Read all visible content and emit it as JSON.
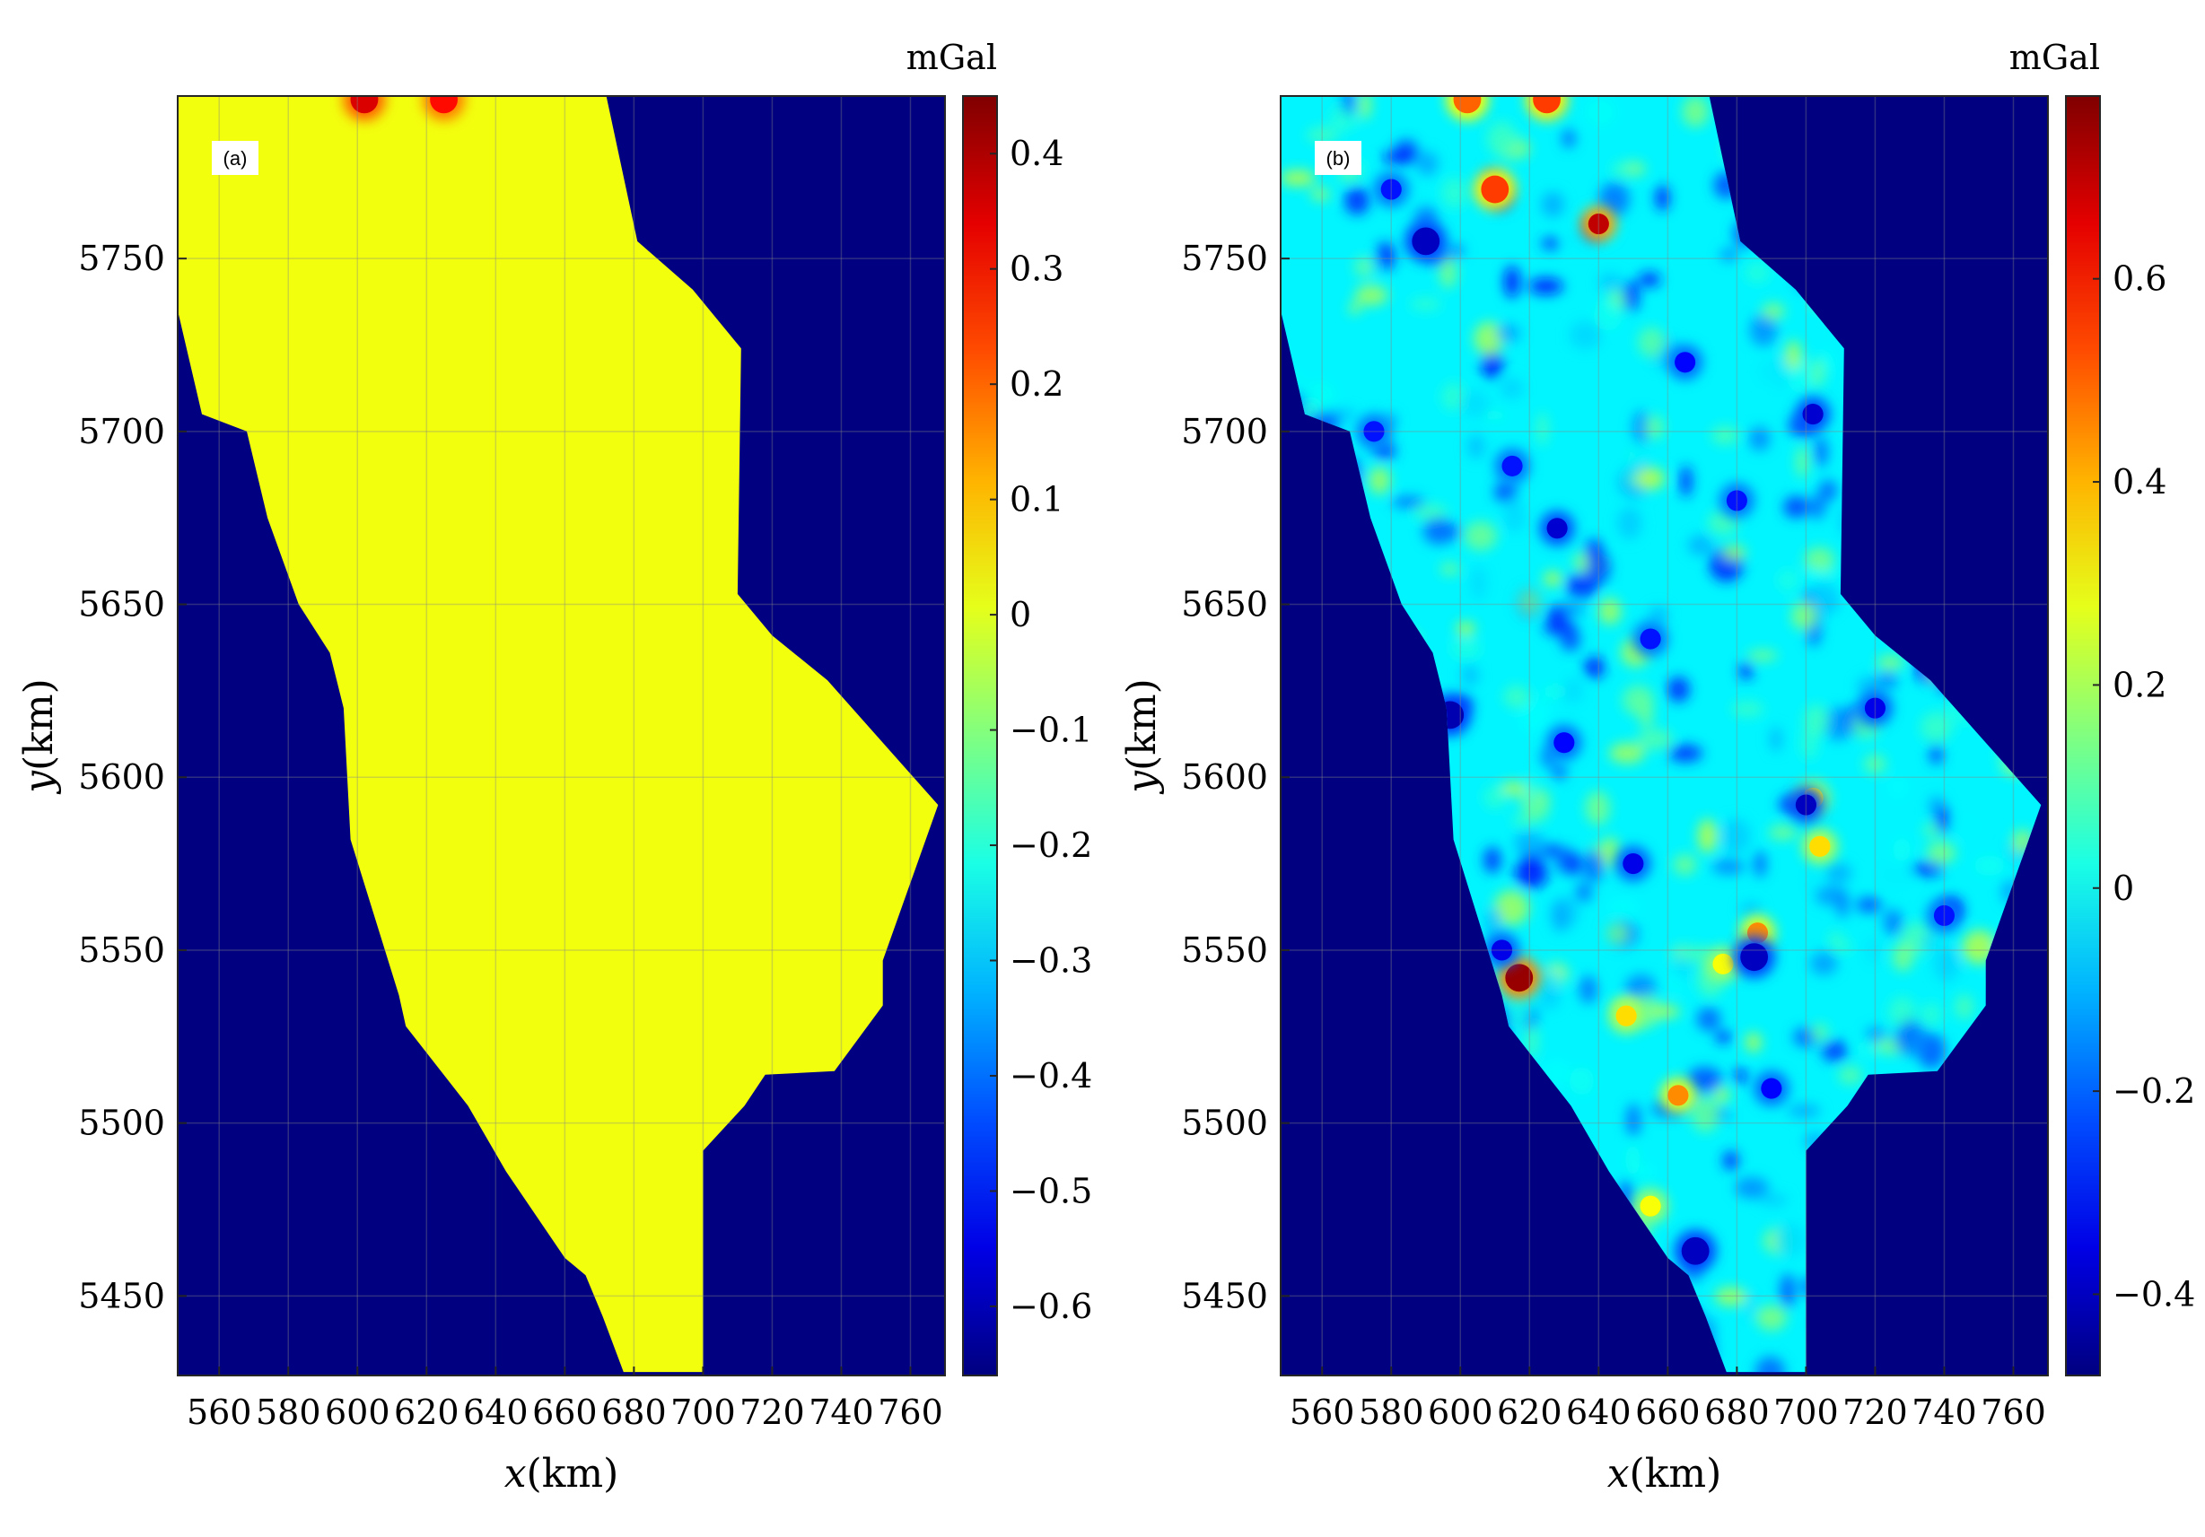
{
  "figure": {
    "background": "#ffffff"
  },
  "chart_data": [
    {
      "type": "heatmap",
      "panel_label": "(a)",
      "xlabel": "x(km)",
      "ylabel": "y(km)",
      "xlim": [
        548,
        770
      ],
      "ylim": [
        5427,
        5797
      ],
      "xticks": [
        560,
        580,
        600,
        620,
        640,
        660,
        680,
        700,
        720,
        740,
        760
      ],
      "yticks": [
        5450,
        5500,
        5550,
        5600,
        5650,
        5700,
        5750
      ],
      "grid": true,
      "colorbar": {
        "unit": "mGal",
        "range": [
          -0.66,
          0.45
        ],
        "ticks": [
          0.4,
          0.3,
          0.2,
          0.1,
          0,
          -0.1,
          -0.2,
          -0.3,
          -0.4,
          -0.5,
          -0.6
        ],
        "colormap": "jet"
      },
      "outside_value": -0.66,
      "inside_value_approx": 0.02,
      "inside_variation": "near-uniform",
      "survey_outline": [
        [
          548,
          5797
        ],
        [
          672,
          5797
        ],
        [
          681,
          5755
        ],
        [
          697,
          5741
        ],
        [
          711,
          5724
        ],
        [
          710,
          5653
        ],
        [
          720,
          5641
        ],
        [
          736,
          5628
        ],
        [
          768,
          5592
        ],
        [
          752,
          5547
        ],
        [
          752,
          5534
        ],
        [
          738,
          5515
        ],
        [
          718,
          5514
        ],
        [
          712,
          5505
        ],
        [
          700,
          5492
        ],
        [
          700,
          5428
        ],
        [
          677,
          5428
        ],
        [
          671,
          5444
        ],
        [
          666,
          5456
        ],
        [
          660,
          5461
        ],
        [
          643,
          5486
        ],
        [
          632,
          5505
        ],
        [
          614,
          5528
        ],
        [
          612,
          5537
        ],
        [
          598,
          5582
        ],
        [
          596,
          5620
        ],
        [
          592,
          5636
        ],
        [
          583,
          5650
        ],
        [
          574,
          5675
        ],
        [
          568,
          5700
        ],
        [
          555,
          5705
        ],
        [
          548,
          5735
        ]
      ],
      "anomalies": [
        {
          "x": 602,
          "y": 5796,
          "radius_km": 4,
          "value": 0.35
        },
        {
          "x": 625,
          "y": 5796,
          "radius_km": 4,
          "value": 0.3
        }
      ]
    },
    {
      "type": "heatmap",
      "panel_label": "(b)",
      "xlabel": "x(km)",
      "ylabel": "y(km)",
      "xlim": [
        548,
        770
      ],
      "ylim": [
        5427,
        5797
      ],
      "xticks": [
        560,
        580,
        600,
        620,
        640,
        660,
        680,
        700,
        720,
        740,
        760
      ],
      "yticks": [
        5450,
        5500,
        5550,
        5600,
        5650,
        5700,
        5750
      ],
      "grid": true,
      "colorbar": {
        "unit": "mGal",
        "range": [
          -0.48,
          0.78
        ],
        "ticks": [
          0.6,
          0.4,
          0.2,
          0,
          -0.2,
          -0.4
        ],
        "colormap": "jet"
      },
      "outside_value": -0.48,
      "inside_value_approx": -0.02,
      "inside_variation": "speckled, roughly -0.35 to 0.3",
      "survey_outline": [
        [
          548,
          5797
        ],
        [
          672,
          5797
        ],
        [
          681,
          5755
        ],
        [
          697,
          5741
        ],
        [
          711,
          5724
        ],
        [
          710,
          5653
        ],
        [
          720,
          5641
        ],
        [
          736,
          5628
        ],
        [
          768,
          5592
        ],
        [
          752,
          5547
        ],
        [
          752,
          5534
        ],
        [
          738,
          5515
        ],
        [
          718,
          5514
        ],
        [
          712,
          5505
        ],
        [
          700,
          5492
        ],
        [
          700,
          5428
        ],
        [
          677,
          5428
        ],
        [
          671,
          5444
        ],
        [
          666,
          5456
        ],
        [
          660,
          5461
        ],
        [
          643,
          5486
        ],
        [
          632,
          5505
        ],
        [
          614,
          5528
        ],
        [
          612,
          5537
        ],
        [
          598,
          5582
        ],
        [
          596,
          5620
        ],
        [
          592,
          5636
        ],
        [
          583,
          5650
        ],
        [
          574,
          5675
        ],
        [
          568,
          5700
        ],
        [
          555,
          5705
        ],
        [
          548,
          5735
        ]
      ],
      "anomalies": [
        {
          "x": 617,
          "y": 5542,
          "radius_km": 4,
          "value": 0.75
        },
        {
          "x": 640,
          "y": 5760,
          "radius_km": 3,
          "value": 0.7
        },
        {
          "x": 610,
          "y": 5770,
          "radius_km": 4,
          "value": 0.55
        },
        {
          "x": 602,
          "y": 5796,
          "radius_km": 4,
          "value": 0.5
        },
        {
          "x": 625,
          "y": 5796,
          "radius_km": 4,
          "value": 0.55
        },
        {
          "x": 686,
          "y": 5555,
          "radius_km": 3,
          "value": 0.45
        },
        {
          "x": 663,
          "y": 5508,
          "radius_km": 3,
          "value": 0.45
        },
        {
          "x": 648,
          "y": 5531,
          "radius_km": 3,
          "value": 0.35
        },
        {
          "x": 704,
          "y": 5580,
          "radius_km": 3,
          "value": 0.35
        },
        {
          "x": 702,
          "y": 5594,
          "radius_km": 3,
          "value": 0.3
        },
        {
          "x": 676,
          "y": 5546,
          "radius_km": 3,
          "value": 0.3
        },
        {
          "x": 655,
          "y": 5476,
          "radius_km": 3,
          "value": 0.3
        },
        {
          "x": 597,
          "y": 5618,
          "radius_km": 4,
          "value": -0.42
        },
        {
          "x": 590,
          "y": 5755,
          "radius_km": 4,
          "value": -0.4
        },
        {
          "x": 628,
          "y": 5672,
          "radius_km": 3,
          "value": -0.38
        },
        {
          "x": 702,
          "y": 5705,
          "radius_km": 3,
          "value": -0.38
        },
        {
          "x": 685,
          "y": 5548,
          "radius_km": 4,
          "value": -0.4
        },
        {
          "x": 700,
          "y": 5592,
          "radius_km": 3,
          "value": -0.4
        },
        {
          "x": 668,
          "y": 5463,
          "radius_km": 4,
          "value": -0.4
        },
        {
          "x": 612,
          "y": 5550,
          "radius_km": 3,
          "value": -0.35
        },
        {
          "x": 650,
          "y": 5575,
          "radius_km": 3,
          "value": -0.35
        },
        {
          "x": 720,
          "y": 5620,
          "radius_km": 3,
          "value": -0.35
        },
        {
          "x": 575,
          "y": 5700,
          "radius_km": 3,
          "value": -0.3
        },
        {
          "x": 630,
          "y": 5610,
          "radius_km": 3,
          "value": -0.32
        },
        {
          "x": 740,
          "y": 5560,
          "radius_km": 3,
          "value": -0.3
        },
        {
          "x": 665,
          "y": 5720,
          "radius_km": 3,
          "value": -0.32
        },
        {
          "x": 680,
          "y": 5680,
          "radius_km": 3,
          "value": -0.3
        },
        {
          "x": 615,
          "y": 5690,
          "radius_km": 3,
          "value": -0.3
        },
        {
          "x": 655,
          "y": 5640,
          "radius_km": 3,
          "value": -0.3
        },
        {
          "x": 690,
          "y": 5510,
          "radius_km": 3,
          "value": -0.32
        },
        {
          "x": 580,
          "y": 5770,
          "radius_km": 3,
          "value": -0.3
        }
      ]
    }
  ]
}
